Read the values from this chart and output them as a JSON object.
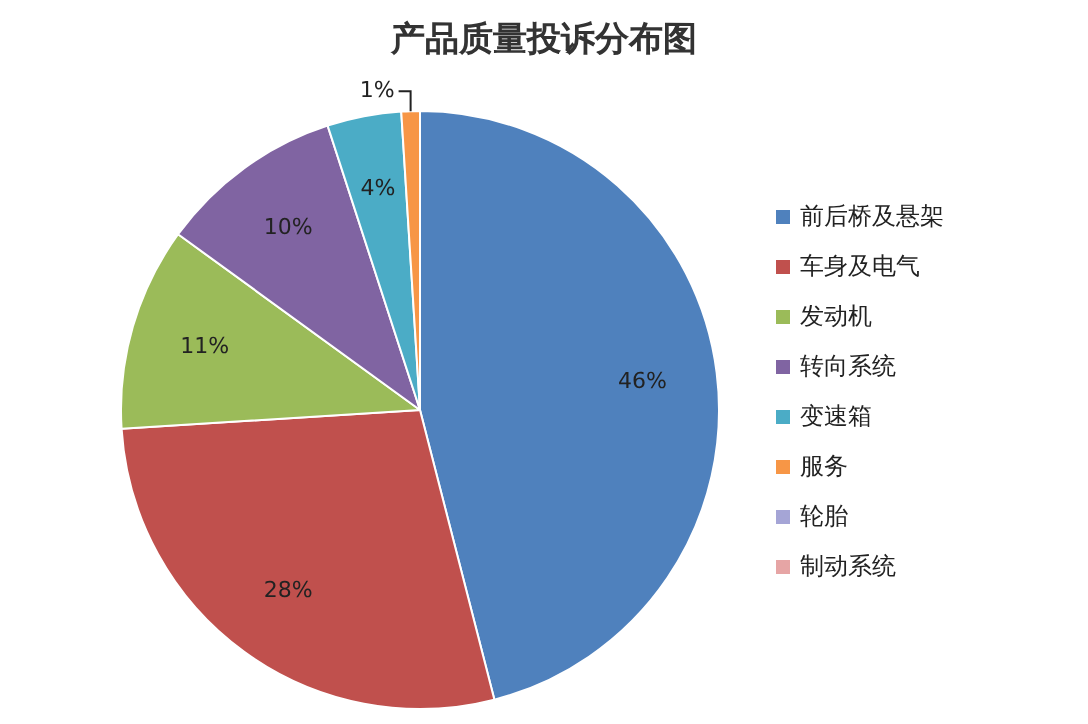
{
  "chart_data": {
    "type": "pie",
    "title": "产品质量投诉分布图",
    "categories": [
      "前后桥及悬架",
      "车身及电气",
      "发动机",
      "转向系统",
      "变速箱",
      "服务",
      "轮胎",
      "制动系统"
    ],
    "values": [
      46,
      28,
      11,
      10,
      4,
      1,
      0,
      0
    ],
    "colors": [
      "#4f81bd",
      "#c0504d",
      "#9bbb59",
      "#8064a2",
      "#4bacc6",
      "#f79646",
      "#a5a5d6",
      "#e6a5a5"
    ],
    "value_labels": [
      "46%",
      "28%",
      "11%",
      "10%",
      "4%",
      "1%",
      null,
      null
    ],
    "legend": "right"
  }
}
